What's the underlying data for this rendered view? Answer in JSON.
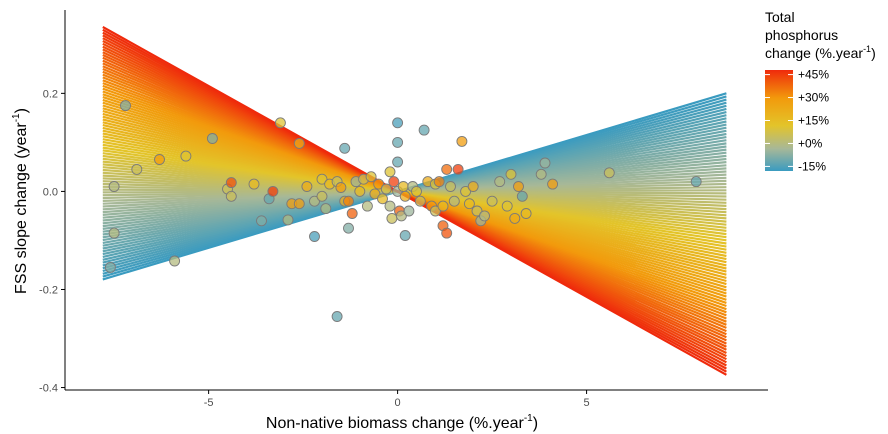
{
  "chart_data": {
    "type": "scatter",
    "xlabel_main": "Non-native biomass change (%.year",
    "xlabel_sup": "-1",
    "xlabel_end": ")",
    "ylabel_main": "FSS slope change (year",
    "ylabel_sup": "-1",
    "ylabel_end": ")",
    "xlim": [
      -8.8,
      9.8
    ],
    "ylim": [
      -0.405,
      0.37
    ],
    "x_ticks": [
      -5,
      0,
      5
    ],
    "y_ticks": [
      -0.4,
      -0.2,
      0.0,
      0.2
    ],
    "x_tick_labels": [
      "-5",
      "0",
      "5"
    ],
    "y_tick_labels": [
      "-0.4",
      "-0.2",
      "0.0",
      "0.2"
    ],
    "grid": false,
    "legend": {
      "title_line1": "Total",
      "title_line2": "phosphorus",
      "title_line3_main": "change (%.year",
      "title_line3_sup": "-1",
      "title_line3_end": ")",
      "placement": "top-right",
      "labels": [
        "+45%",
        "+30%",
        "+15%",
        "+0%",
        "-15%"
      ],
      "values": [
        45,
        30,
        15,
        0,
        -15
      ],
      "range": [
        -18,
        48
      ]
    },
    "colors": {
      "high": "#ef2a0c",
      "mid_high": "#f29a0c",
      "mid": "#e3c42a",
      "low_mid": "#a7b898",
      "low": "#3a9bc0"
    },
    "fan": {
      "x_range": [
        -7.8,
        8.7
      ],
      "p_min": -18,
      "p_max": 48,
      "slope_at_min": 0.023,
      "slope_at_max": -0.043
    },
    "points": [
      {
        "x": -7.5,
        "y": 0.01,
        "tp": 5
      },
      {
        "x": -7.2,
        "y": 0.175,
        "tp": -5
      },
      {
        "x": -6.9,
        "y": 0.045,
        "tp": 10
      },
      {
        "x": -7.5,
        "y": -0.085,
        "tp": 5
      },
      {
        "x": -7.6,
        "y": -0.155,
        "tp": -5
      },
      {
        "x": -6.3,
        "y": 0.065,
        "tp": 30
      },
      {
        "x": -5.9,
        "y": -0.142,
        "tp": 5
      },
      {
        "x": -5.6,
        "y": 0.072,
        "tp": 15
      },
      {
        "x": -4.9,
        "y": 0.108,
        "tp": -5
      },
      {
        "x": -4.5,
        "y": 0.005,
        "tp": 10
      },
      {
        "x": -4.4,
        "y": 0.018,
        "tp": 42
      },
      {
        "x": -4.4,
        "y": -0.01,
        "tp": 10
      },
      {
        "x": -3.8,
        "y": 0.015,
        "tp": 20
      },
      {
        "x": -3.6,
        "y": -0.06,
        "tp": -5
      },
      {
        "x": -3.4,
        "y": -0.015,
        "tp": -10
      },
      {
        "x": -3.3,
        "y": 0.0,
        "tp": 45
      },
      {
        "x": -3.1,
        "y": 0.14,
        "tp": 15
      },
      {
        "x": -2.9,
        "y": -0.058,
        "tp": 5
      },
      {
        "x": -2.6,
        "y": 0.098,
        "tp": 25
      },
      {
        "x": -2.8,
        "y": -0.025,
        "tp": 30
      },
      {
        "x": -2.6,
        "y": -0.025,
        "tp": 30
      },
      {
        "x": -2.4,
        "y": 0.01,
        "tp": 25
      },
      {
        "x": -2.2,
        "y": -0.02,
        "tp": 5
      },
      {
        "x": -2.2,
        "y": -0.092,
        "tp": -15
      },
      {
        "x": -2.0,
        "y": 0.025,
        "tp": 15
      },
      {
        "x": -2.0,
        "y": -0.01,
        "tp": 10
      },
      {
        "x": -1.9,
        "y": -0.035,
        "tp": 5
      },
      {
        "x": -1.8,
        "y": 0.015,
        "tp": 20
      },
      {
        "x": -1.6,
        "y": -0.255,
        "tp": -10
      },
      {
        "x": -1.6,
        "y": 0.02,
        "tp": 10
      },
      {
        "x": -1.5,
        "y": 0.008,
        "tp": 30
      },
      {
        "x": -1.4,
        "y": -0.02,
        "tp": 25
      },
      {
        "x": -1.4,
        "y": 0.088,
        "tp": -10
      },
      {
        "x": -1.3,
        "y": -0.075,
        "tp": -5
      },
      {
        "x": -1.3,
        "y": -0.02,
        "tp": 35
      },
      {
        "x": -1.2,
        "y": -0.045,
        "tp": 40
      },
      {
        "x": -1.1,
        "y": 0.02,
        "tp": 0
      },
      {
        "x": -1.0,
        "y": 0.0,
        "tp": 20
      },
      {
        "x": -0.9,
        "y": 0.025,
        "tp": 10
      },
      {
        "x": -0.8,
        "y": -0.03,
        "tp": 5
      },
      {
        "x": -0.7,
        "y": 0.03,
        "tp": 15
      },
      {
        "x": -0.6,
        "y": -0.005,
        "tp": 25
      },
      {
        "x": -0.5,
        "y": 0.015,
        "tp": 30
      },
      {
        "x": -0.4,
        "y": -0.015,
        "tp": 20
      },
      {
        "x": -0.3,
        "y": 0.005,
        "tp": 10
      },
      {
        "x": -0.2,
        "y": 0.04,
        "tp": 15
      },
      {
        "x": -0.2,
        "y": -0.03,
        "tp": 5
      },
      {
        "x": -0.15,
        "y": -0.055,
        "tp": 10
      },
      {
        "x": -0.1,
        "y": 0.02,
        "tp": 45
      },
      {
        "x": 0.0,
        "y": 0.14,
        "tp": -15
      },
      {
        "x": 0.0,
        "y": 0.1,
        "tp": -10
      },
      {
        "x": 0.0,
        "y": 0.06,
        "tp": -10
      },
      {
        "x": 0.0,
        "y": 0.0,
        "tp": 0
      },
      {
        "x": 0.05,
        "y": -0.04,
        "tp": 40
      },
      {
        "x": 0.1,
        "y": -0.05,
        "tp": 5
      },
      {
        "x": 0.15,
        "y": 0.01,
        "tp": 20
      },
      {
        "x": 0.2,
        "y": -0.01,
        "tp": 25
      },
      {
        "x": 0.2,
        "y": -0.09,
        "tp": -10
      },
      {
        "x": 0.3,
        "y": -0.04,
        "tp": 0
      },
      {
        "x": 0.4,
        "y": 0.01,
        "tp": 5
      },
      {
        "x": 0.5,
        "y": 0.0,
        "tp": 15
      },
      {
        "x": 0.6,
        "y": -0.02,
        "tp": 10
      },
      {
        "x": 0.7,
        "y": 0.125,
        "tp": -10
      },
      {
        "x": 0.8,
        "y": 0.02,
        "tp": 25
      },
      {
        "x": 0.9,
        "y": -0.03,
        "tp": 30
      },
      {
        "x": 1.0,
        "y": 0.015,
        "tp": 15
      },
      {
        "x": 1.0,
        "y": -0.04,
        "tp": 10
      },
      {
        "x": 1.1,
        "y": 0.02,
        "tp": 35
      },
      {
        "x": 1.2,
        "y": -0.07,
        "tp": 40
      },
      {
        "x": 1.2,
        "y": -0.03,
        "tp": 20
      },
      {
        "x": 1.3,
        "y": 0.045,
        "tp": 38
      },
      {
        "x": 1.3,
        "y": -0.085,
        "tp": 42
      },
      {
        "x": 1.4,
        "y": 0.01,
        "tp": 10
      },
      {
        "x": 1.5,
        "y": -0.02,
        "tp": 5
      },
      {
        "x": 1.6,
        "y": 0.045,
        "tp": 45
      },
      {
        "x": 1.7,
        "y": 0.102,
        "tp": 30
      },
      {
        "x": 1.8,
        "y": 0.0,
        "tp": 15
      },
      {
        "x": 1.9,
        "y": -0.025,
        "tp": 20
      },
      {
        "x": 2.0,
        "y": 0.01,
        "tp": 25
      },
      {
        "x": 2.1,
        "y": -0.04,
        "tp": 10
      },
      {
        "x": 2.2,
        "y": -0.06,
        "tp": 0
      },
      {
        "x": 2.3,
        "y": -0.05,
        "tp": 5
      },
      {
        "x": 2.5,
        "y": -0.02,
        "tp": 10
      },
      {
        "x": 2.7,
        "y": 0.02,
        "tp": 5
      },
      {
        "x": 2.9,
        "y": -0.03,
        "tp": 15
      },
      {
        "x": 3.0,
        "y": 0.035,
        "tp": 15
      },
      {
        "x": 3.1,
        "y": -0.055,
        "tp": 25
      },
      {
        "x": 3.2,
        "y": 0.01,
        "tp": 30
      },
      {
        "x": 3.4,
        "y": -0.045,
        "tp": 20
      },
      {
        "x": 3.3,
        "y": -0.01,
        "tp": -10
      },
      {
        "x": 3.8,
        "y": 0.035,
        "tp": 5
      },
      {
        "x": 3.9,
        "y": 0.058,
        "tp": 0
      },
      {
        "x": 4.1,
        "y": 0.015,
        "tp": 30
      },
      {
        "x": 5.6,
        "y": 0.038,
        "tp": 10
      },
      {
        "x": 7.9,
        "y": 0.02,
        "tp": -10
      }
    ]
  }
}
